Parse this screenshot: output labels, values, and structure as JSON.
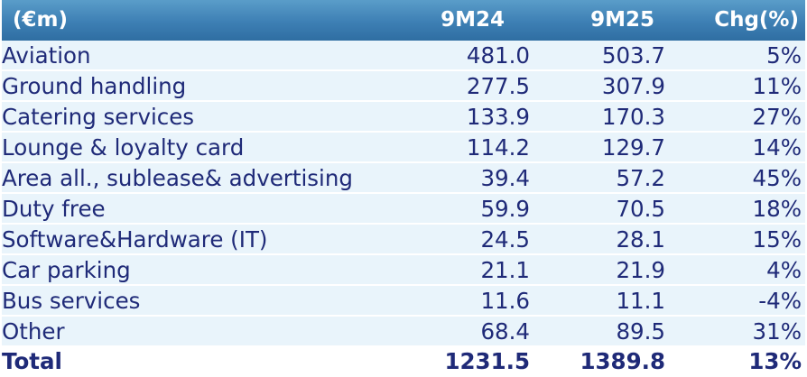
{
  "header": {
    "label": "(€m)",
    "col1": "9M24",
    "col2": "9M25",
    "col3": "Chg(%)"
  },
  "rows": [
    {
      "label": "Aviation",
      "v1": "481.0",
      "v2": "503.7",
      "chg": "5%"
    },
    {
      "label": "Ground handling",
      "v1": "277.5",
      "v2": "307.9",
      "chg": "11%"
    },
    {
      "label": "Catering services",
      "v1": "133.9",
      "v2": "170.3",
      "chg": "27%"
    },
    {
      "label": "Lounge & loyalty card",
      "v1": "114.2",
      "v2": "129.7",
      "chg": "14%"
    },
    {
      "label": "Area all., sublease& advertising",
      "v1": "39.4",
      "v2": "57.2",
      "chg": "45%"
    },
    {
      "label": "Duty free",
      "v1": "59.9",
      "v2": "70.5",
      "chg": "18%"
    },
    {
      "label": "Software&Hardware (IT)",
      "v1": "24.5",
      "v2": "28.1",
      "chg": "15%"
    },
    {
      "label": "Car parking",
      "v1": "21.1",
      "v2": "21.9",
      "chg": "4%"
    },
    {
      "label": "Bus services",
      "v1": "11.6",
      "v2": "11.1",
      "chg": "-4%"
    },
    {
      "label": "Other",
      "v1": "68.4",
      "v2": "89.5",
      "chg": "31%"
    }
  ],
  "total": {
    "label": "Total",
    "v1": "1231.5",
    "v2": "1389.8",
    "chg": "13%"
  },
  "colors": {
    "header_bg": "#3d7fb4",
    "row_bg": "#e9f4fb",
    "text": "#1f2a78"
  }
}
